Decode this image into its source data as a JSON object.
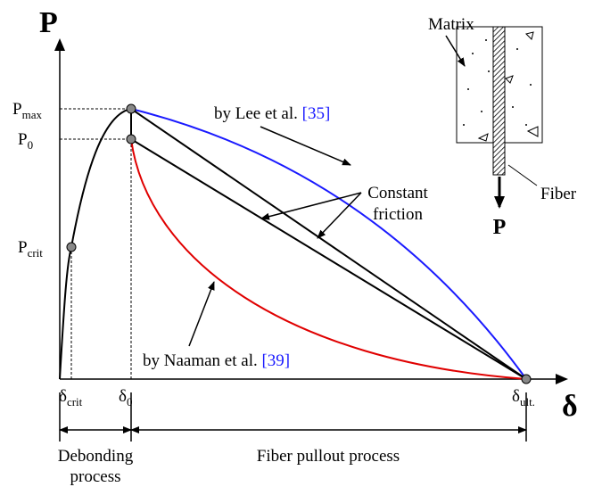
{
  "axes": {
    "y_label": "P",
    "x_label": "δ"
  },
  "y_labels": {
    "p_max": {
      "main": "P",
      "sub": "max"
    },
    "p_0": {
      "main": "P",
      "sub": "0"
    },
    "p_crit": {
      "main": "P",
      "sub": "crit"
    }
  },
  "x_labels": {
    "delta_crit": {
      "main": "δ",
      "sub": "crit"
    },
    "delta_0": {
      "main": "δ",
      "sub": "0"
    },
    "delta_ult": {
      "main": "δ",
      "sub": "ult."
    }
  },
  "annotations": {
    "lee": {
      "text": "by Lee et al. ",
      "ref": "[35]"
    },
    "naaman": {
      "text": "by Naaman et al. ",
      "ref": "[39]"
    },
    "constant_friction": [
      "Constant",
      "friction"
    ]
  },
  "inset": {
    "matrix": "Matrix",
    "fiber": "Fiber",
    "load": "P"
  },
  "processes": {
    "debonding": [
      "Debonding",
      "process"
    ],
    "pullout": "Fiber pullout process"
  }
}
